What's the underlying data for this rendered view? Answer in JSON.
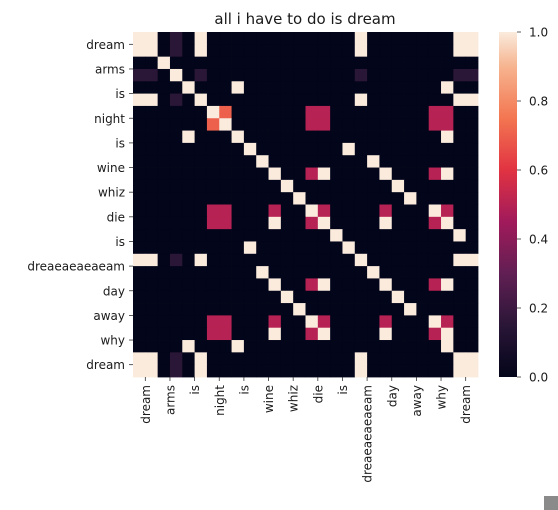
{
  "chart_data": {
    "type": "heatmap",
    "title": "all i have to do is dream",
    "xlabel": "",
    "ylabel": "",
    "labels": [
      "dream",
      "dream",
      "arms",
      "arms",
      "is",
      "is",
      "night",
      "night",
      "is",
      "is",
      "wine",
      "wine",
      "whiz",
      "whiz",
      "die",
      "die",
      "is",
      "is",
      "dreaeaeaeaeam",
      "dreaeaeaeaeam",
      "day",
      "day",
      "away",
      "away",
      "why",
      "why",
      "dream",
      "dream"
    ],
    "xticks": [
      "dream",
      "arms",
      "is",
      "night",
      "is",
      "wine",
      "whiz",
      "die",
      "is",
      "dreaeaeaeaeam",
      "day",
      "away",
      "why",
      "dream"
    ],
    "yticks": [
      "dream",
      "arms",
      "is",
      "night",
      "is",
      "wine",
      "whiz",
      "die",
      "is",
      "dreaeaeaeaeam",
      "day",
      "away",
      "why",
      "dream"
    ],
    "colorbar": {
      "min": 0,
      "max": 1,
      "ticks": [
        "0.0",
        "0.2",
        "0.4",
        "0.6",
        "0.8",
        "1.0"
      ]
    },
    "values": [
      [
        1,
        1,
        0,
        0.15,
        0,
        1,
        0,
        0,
        0,
        0,
        0,
        0,
        0,
        0,
        0,
        0,
        0,
        0,
        1,
        0,
        0,
        0,
        0,
        0,
        0,
        0,
        1,
        1
      ],
      [
        1,
        1,
        0,
        0.15,
        0,
        1,
        0,
        0,
        0,
        0,
        0,
        0,
        0,
        0,
        0,
        0,
        0,
        0,
        1,
        0,
        0,
        0,
        0,
        0,
        0,
        0,
        1,
        1
      ],
      [
        0,
        0,
        1,
        0,
        0,
        0,
        0,
        0,
        0,
        0,
        0,
        0,
        0,
        0,
        0,
        0,
        0,
        0,
        0,
        0,
        0,
        0,
        0,
        0,
        0,
        0,
        0,
        0
      ],
      [
        0.15,
        0.15,
        0,
        1,
        0,
        0.15,
        0,
        0,
        0,
        0,
        0,
        0,
        0,
        0,
        0,
        0,
        0,
        0,
        0.15,
        0,
        0,
        0,
        0,
        0,
        0,
        0,
        0.15,
        0.15
      ],
      [
        0,
        0,
        0,
        0,
        1,
        0,
        0,
        0,
        1,
        0,
        0,
        0,
        0,
        0,
        0,
        0,
        0,
        0,
        0,
        0,
        0,
        0,
        0,
        0,
        0,
        1,
        0,
        0
      ],
      [
        1,
        1,
        0,
        0.15,
        0,
        1,
        0,
        0,
        0,
        0,
        0,
        0,
        0,
        0,
        0,
        0,
        0,
        0,
        1,
        0,
        0,
        0,
        0,
        0,
        0,
        0,
        1,
        1
      ],
      [
        0,
        0,
        0,
        0,
        0,
        0,
        1,
        0.7,
        0,
        0,
        0,
        0,
        0,
        0,
        0.5,
        0.5,
        0,
        0,
        0,
        0,
        0,
        0,
        0,
        0,
        0.5,
        0.5,
        0,
        0
      ],
      [
        0,
        0,
        0,
        0,
        0,
        0,
        0.7,
        1,
        0,
        0,
        0,
        0,
        0,
        0,
        0.5,
        0.5,
        0,
        0,
        0,
        0,
        0,
        0,
        0,
        0,
        0.5,
        0.5,
        0,
        0
      ],
      [
        0,
        0,
        0,
        0,
        1,
        0,
        0,
        0,
        1,
        0,
        0,
        0,
        0,
        0,
        0,
        0,
        0,
        0,
        0,
        0,
        0,
        0,
        0,
        0,
        0,
        1,
        0,
        0
      ],
      [
        0,
        0,
        0,
        0,
        0,
        0,
        0,
        0,
        0,
        1,
        0,
        0,
        0,
        0,
        0,
        0,
        0,
        1,
        0,
        0,
        0,
        0,
        0,
        0,
        0,
        0,
        0,
        0
      ],
      [
        0,
        0,
        0,
        0,
        0,
        0,
        0,
        0,
        0,
        0,
        1,
        0,
        0,
        0,
        0,
        0,
        0,
        0,
        0,
        1,
        0,
        0,
        0,
        0,
        0,
        0,
        0,
        0
      ],
      [
        0,
        0,
        0,
        0,
        0,
        0,
        0,
        0,
        0,
        0,
        0,
        1,
        0,
        0,
        0.5,
        1,
        0,
        0,
        0,
        0,
        1,
        0,
        0,
        0,
        0.5,
        1,
        0,
        0
      ],
      [
        0,
        0,
        0,
        0,
        0,
        0,
        0,
        0,
        0,
        0,
        0,
        0,
        1,
        0,
        0,
        0,
        0,
        0,
        0,
        0,
        0,
        1,
        0,
        0,
        0,
        0,
        0,
        0
      ],
      [
        0,
        0,
        0,
        0,
        0,
        0,
        0,
        0,
        0,
        0,
        0,
        0,
        0,
        1,
        0,
        0,
        0,
        0,
        0,
        0,
        0,
        0,
        1,
        0,
        0,
        0,
        0,
        0
      ],
      [
        0,
        0,
        0,
        0,
        0,
        0,
        0.5,
        0.5,
        0,
        0,
        0,
        0.5,
        0,
        0,
        1,
        0.5,
        0,
        0,
        0,
        0,
        0.5,
        0,
        0,
        0,
        1,
        0.5,
        0,
        0
      ],
      [
        0,
        0,
        0,
        0,
        0,
        0,
        0.5,
        0.5,
        0,
        0,
        0,
        1,
        0,
        0,
        0.5,
        1,
        0,
        0,
        0,
        0,
        1,
        0,
        0,
        0,
        0.5,
        1,
        0,
        0
      ],
      [
        0,
        0,
        0,
        0,
        0,
        0,
        0,
        0,
        0,
        0,
        0,
        0,
        0,
        0,
        0,
        0,
        1,
        0,
        0,
        0,
        0,
        0,
        0,
        0,
        0,
        0,
        1,
        0
      ],
      [
        0,
        0,
        0,
        0,
        0,
        0,
        0,
        0,
        0,
        1,
        0,
        0,
        0,
        0,
        0,
        0,
        0,
        1,
        0,
        0,
        0,
        0,
        0,
        0,
        0,
        0,
        0,
        0
      ],
      [
        1,
        1,
        0,
        0.15,
        0,
        1,
        0,
        0,
        0,
        0,
        0,
        0,
        0,
        0,
        0,
        0,
        0,
        0,
        1,
        0,
        0,
        0,
        0,
        0,
        0,
        0,
        1,
        1
      ],
      [
        0,
        0,
        0,
        0,
        0,
        0,
        0,
        0,
        0,
        0,
        1,
        0,
        0,
        0,
        0,
        0,
        0,
        0,
        0,
        1,
        0,
        0,
        0,
        0,
        0,
        0,
        0,
        0
      ],
      [
        0,
        0,
        0,
        0,
        0,
        0,
        0,
        0,
        0,
        0,
        0,
        1,
        0,
        0,
        0.5,
        1,
        0,
        0,
        0,
        0,
        1,
        0,
        0,
        0,
        0.5,
        1,
        0,
        0
      ],
      [
        0,
        0,
        0,
        0,
        0,
        0,
        0,
        0,
        0,
        0,
        0,
        0,
        1,
        0,
        0,
        0,
        0,
        0,
        0,
        0,
        0,
        1,
        0,
        0,
        0,
        0,
        0,
        0
      ],
      [
        0,
        0,
        0,
        0,
        0,
        0,
        0,
        0,
        0,
        0,
        0,
        0,
        0,
        1,
        0,
        0,
        0,
        0,
        0,
        0,
        0,
        0,
        1,
        0,
        0,
        0,
        0,
        0
      ],
      [
        0,
        0,
        0,
        0,
        0,
        0,
        0.5,
        0.5,
        0,
        0,
        0,
        0.5,
        0,
        0,
        1,
        0.5,
        0,
        0,
        0,
        0,
        0.5,
        0,
        0,
        0,
        1,
        0.5,
        0,
        0
      ],
      [
        0,
        0,
        0,
        0,
        0,
        0,
        0.5,
        0.5,
        0,
        0,
        0,
        1,
        0,
        0,
        0.5,
        1,
        0,
        0,
        0,
        0,
        1,
        0,
        0,
        0,
        0.5,
        1,
        0,
        0
      ],
      [
        0,
        0,
        0,
        0,
        1,
        0,
        0,
        0,
        1,
        0,
        0,
        0,
        0,
        0,
        0,
        0,
        0,
        0,
        0,
        0,
        0,
        0,
        0,
        0,
        0,
        1,
        0,
        0
      ],
      [
        1,
        1,
        0,
        0.15,
        0,
        1,
        0,
        0,
        0,
        0,
        0,
        0,
        0,
        0,
        0,
        0,
        0,
        0,
        1,
        0,
        0,
        0,
        0,
        0,
        0,
        0,
        1,
        1
      ],
      [
        1,
        1,
        0,
        0.15,
        0,
        1,
        0,
        0,
        0,
        0,
        0,
        0,
        0,
        0,
        0,
        0,
        0,
        0,
        1,
        0,
        0,
        0,
        0,
        0,
        0,
        0,
        1,
        1
      ]
    ]
  }
}
